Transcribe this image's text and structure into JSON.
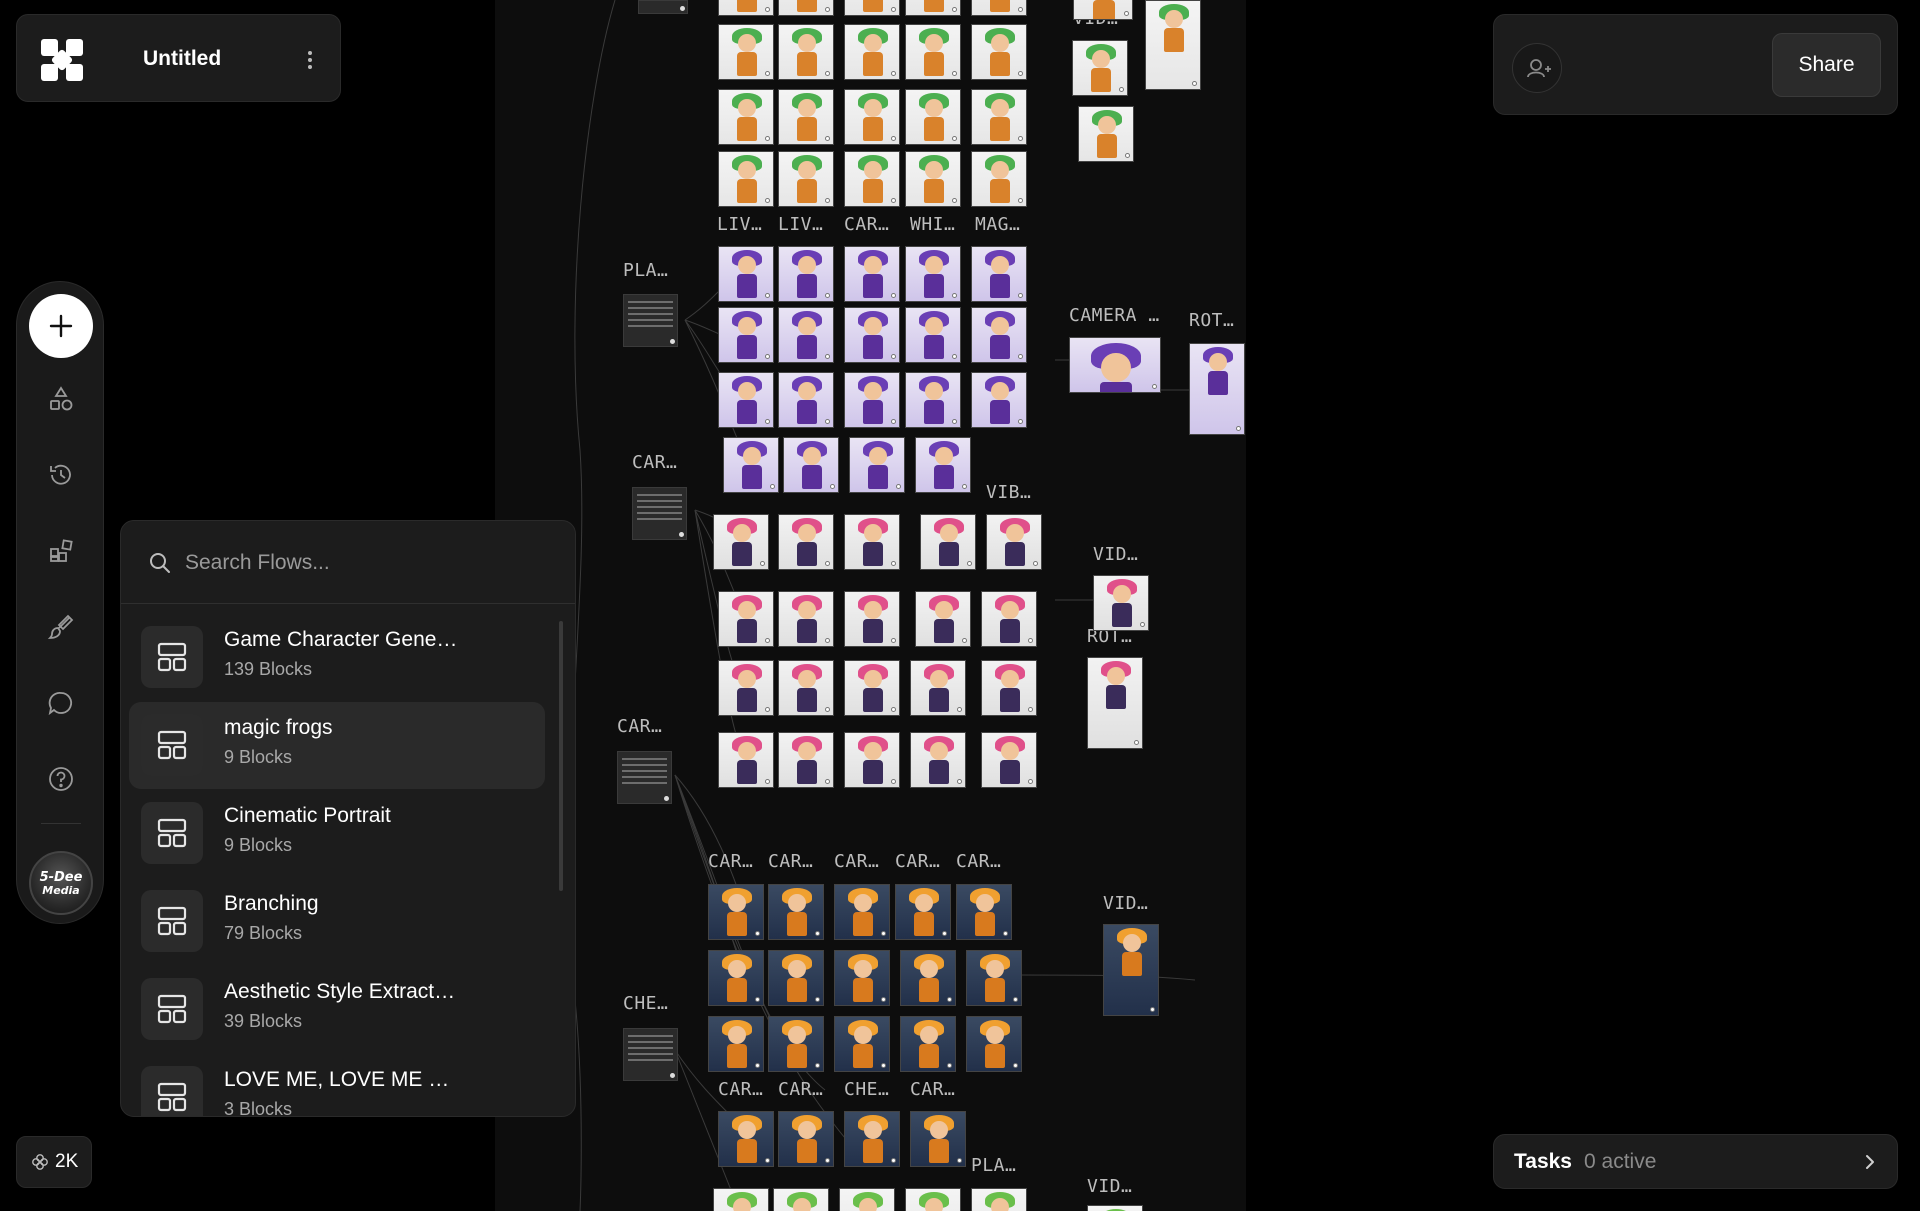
{
  "app": {
    "title": "Untitled"
  },
  "share": {
    "label": "Share"
  },
  "flows": {
    "search_placeholder": "Search Flows...",
    "items": [
      {
        "name": "Game Character Gene…",
        "count": "139 Blocks",
        "selected": false
      },
      {
        "name": "magic frogs",
        "count": "9 Blocks",
        "selected": true
      },
      {
        "name": "Cinematic Portrait",
        "count": "9 Blocks",
        "selected": false
      },
      {
        "name": "Branching",
        "count": "79 Blocks",
        "selected": false
      },
      {
        "name": "Aesthetic Style Extract…",
        "count": "39 Blocks",
        "selected": false
      },
      {
        "name": "LOVE ME, LOVE ME …",
        "count": "3 Blocks",
        "selected": false
      }
    ]
  },
  "avatar": {
    "text_line1": "5-Dee",
    "text_line2": "Media"
  },
  "zoom": {
    "value": "2K"
  },
  "tasks": {
    "label": "Tasks",
    "count": "0 active"
  },
  "canvas": {
    "labels": [
      "PLA…",
      "CAR…",
      "CAR…",
      "CHE…",
      "LIV…",
      "LIV…",
      "CAR…",
      "WHI…",
      "MAG…",
      "CAMERA …",
      "ROT…",
      "VID…",
      "VIB…",
      "ROT…",
      "VID…",
      "CAR…",
      "CAR…",
      "CAR…",
      "CAR…",
      "CAR…",
      "CAR…",
      "CAR…",
      "CHE…",
      "CAR…",
      "PLA…",
      "VID…",
      "VID…"
    ]
  },
  "colors": {
    "background": "#000000",
    "panel": "#1c1c1c",
    "canvas": "#0d0d0d",
    "accent": "#ffffff"
  }
}
